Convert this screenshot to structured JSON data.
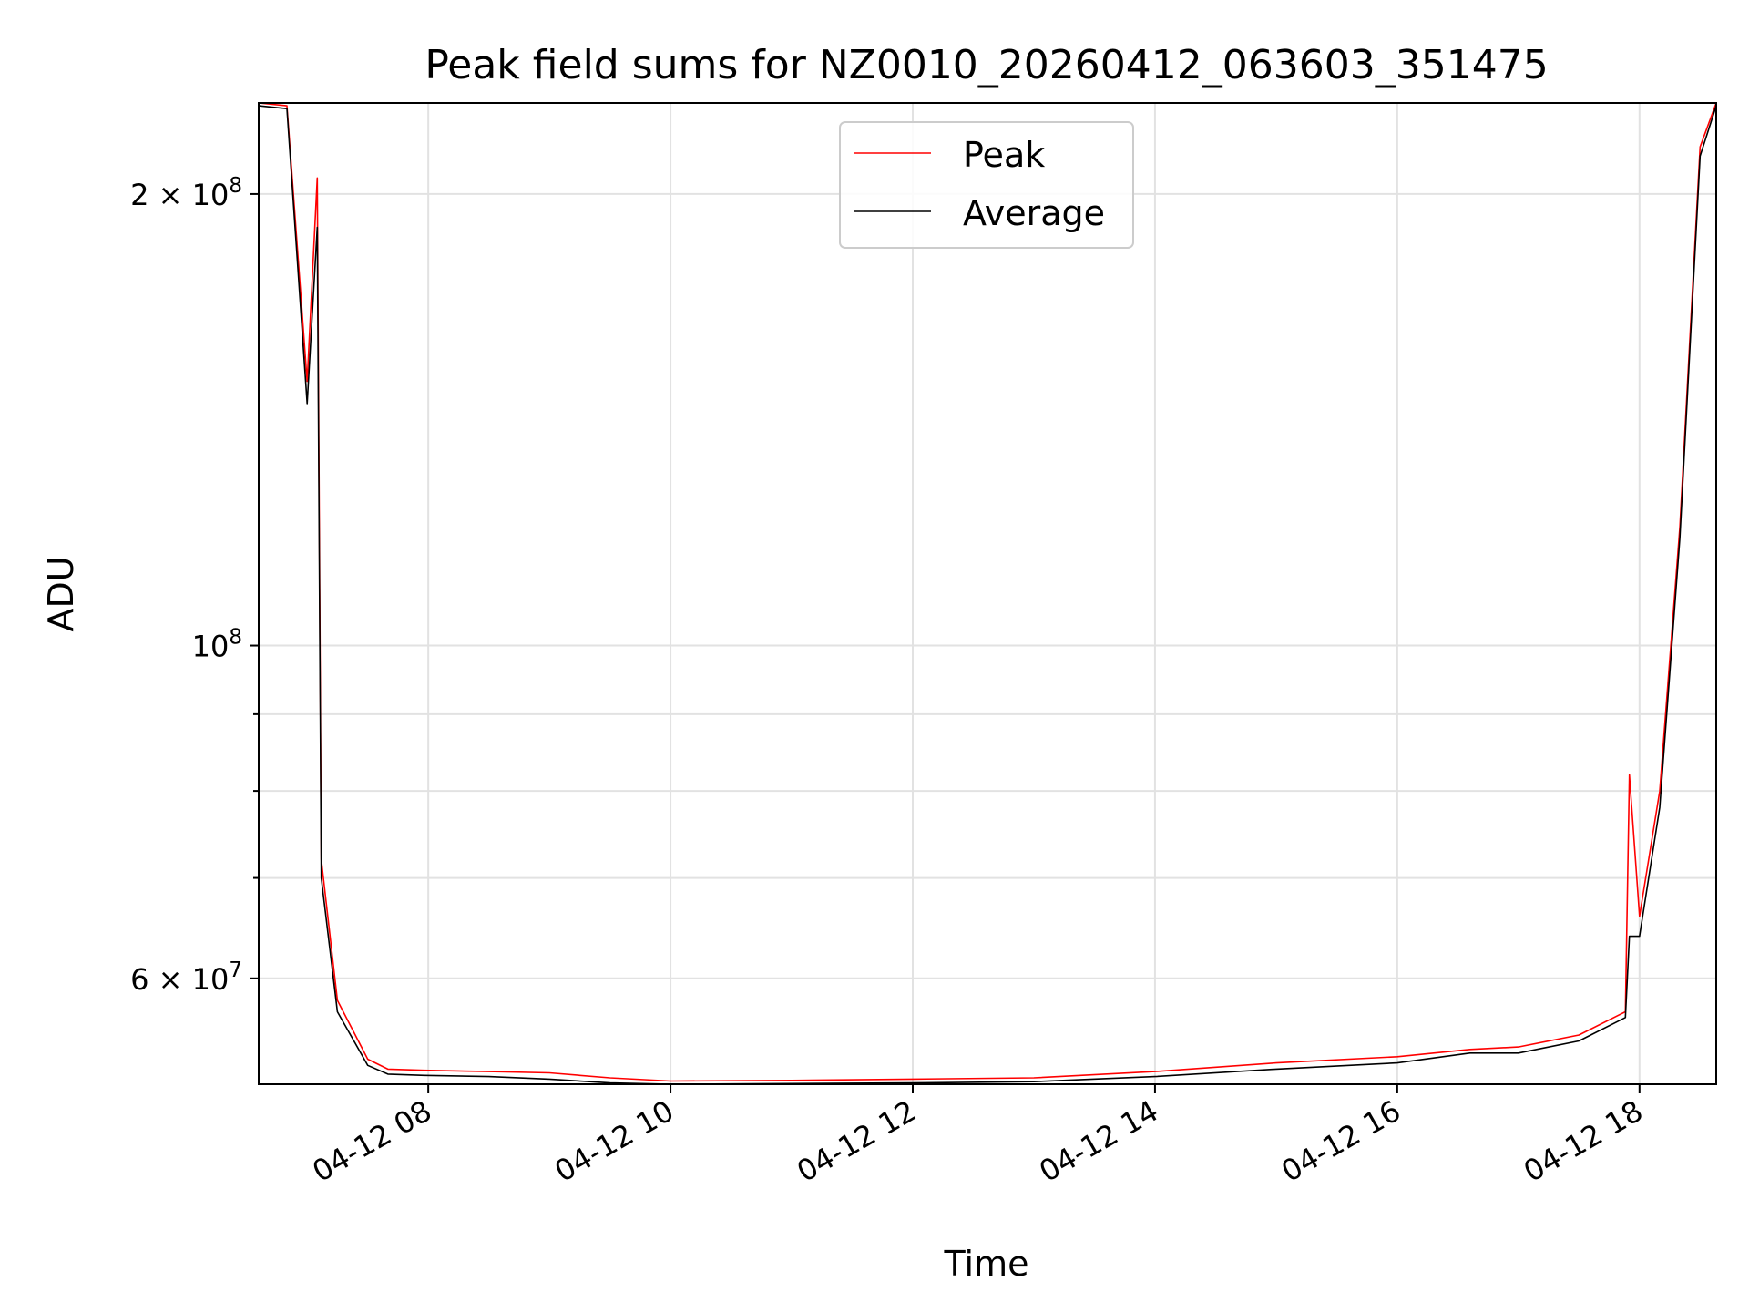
{
  "chart_data": {
    "type": "line",
    "title": "Peak field sums for NZ0010_20260412_063603_351475",
    "xlabel": "Time",
    "ylabel": "ADU",
    "y_scale": "log",
    "grid": true,
    "legend_position": "upper-center",
    "xlim": [
      "2026-04-12 06:36",
      "2026-04-12 18:38"
    ],
    "ylim": [
      51000000,
      230000000
    ],
    "x_ticks": [
      "04-12 08",
      "04-12 10",
      "04-12 12",
      "04-12 14",
      "04-12 16",
      "04-12 18"
    ],
    "y_tick_labels": [
      {
        "value": 200000000,
        "mantissa": "2",
        "base": "10",
        "exp": "8"
      },
      {
        "value": 100000000,
        "mantissa": "",
        "base": "10",
        "exp": "8"
      },
      {
        "value": 60000000,
        "mantissa": "6",
        "base": "10",
        "exp": "7"
      }
    ],
    "y_minor_ticks": [
      70000000,
      80000000,
      90000000
    ],
    "series": [
      {
        "name": "Peak",
        "color": "#ff0000",
        "points": [
          [
            "2026-04-12 06:36",
            230000000
          ],
          [
            "2026-04-12 06:50",
            229000000
          ],
          [
            "2026-04-12 07:00",
            150000000
          ],
          [
            "2026-04-12 07:05",
            205000000
          ],
          [
            "2026-04-12 07:07",
            72000000
          ],
          [
            "2026-04-12 07:15",
            58000000
          ],
          [
            "2026-04-12 07:30",
            53000000
          ],
          [
            "2026-04-12 07:40",
            52200000
          ],
          [
            "2026-04-12 07:58",
            52100000
          ],
          [
            "2026-04-12 08:30",
            52000000
          ],
          [
            "2026-04-12 09:00",
            51900000
          ],
          [
            "2026-04-12 09:30",
            51500000
          ],
          [
            "2026-04-12 10:00",
            51250000
          ],
          [
            "2026-04-12 11:00",
            51300000
          ],
          [
            "2026-04-12 12:00",
            51400000
          ],
          [
            "2026-04-12 13:00",
            51500000
          ],
          [
            "2026-04-12 14:00",
            52000000
          ],
          [
            "2026-04-12 15:00",
            52700000
          ],
          [
            "2026-04-12 16:00",
            53200000
          ],
          [
            "2026-04-12 16:36",
            53800000
          ],
          [
            "2026-04-12 17:00",
            54000000
          ],
          [
            "2026-04-12 17:30",
            55000000
          ],
          [
            "2026-04-12 17:53",
            57000000
          ],
          [
            "2026-04-12 17:55",
            82000000
          ],
          [
            "2026-04-12 18:00",
            66000000
          ],
          [
            "2026-04-12 18:10",
            80000000
          ],
          [
            "2026-04-12 18:20",
            120000000
          ],
          [
            "2026-04-12 18:30",
            215000000
          ],
          [
            "2026-04-12 18:38",
            230000000
          ]
        ]
      },
      {
        "name": "Average",
        "color": "#000000",
        "points": [
          [
            "2026-04-12 06:36",
            229000000
          ],
          [
            "2026-04-12 06:50",
            228000000
          ],
          [
            "2026-04-12 07:00",
            145000000
          ],
          [
            "2026-04-12 07:05",
            190000000
          ],
          [
            "2026-04-12 07:07",
            70000000
          ],
          [
            "2026-04-12 07:15",
            57000000
          ],
          [
            "2026-04-12 07:30",
            52500000
          ],
          [
            "2026-04-12 07:40",
            51800000
          ],
          [
            "2026-04-12 07:58",
            51700000
          ],
          [
            "2026-04-12 08:30",
            51600000
          ],
          [
            "2026-04-12 09:00",
            51400000
          ],
          [
            "2026-04-12 09:30",
            51100000
          ],
          [
            "2026-04-12 10:00",
            51000000
          ],
          [
            "2026-04-12 11:00",
            51050000
          ],
          [
            "2026-04-12 12:00",
            51100000
          ],
          [
            "2026-04-12 13:00",
            51200000
          ],
          [
            "2026-04-12 14:00",
            51600000
          ],
          [
            "2026-04-12 15:00",
            52200000
          ],
          [
            "2026-04-12 16:00",
            52700000
          ],
          [
            "2026-04-12 16:36",
            53500000
          ],
          [
            "2026-04-12 17:00",
            53500000
          ],
          [
            "2026-04-12 17:30",
            54500000
          ],
          [
            "2026-04-12 17:53",
            56500000
          ],
          [
            "2026-04-12 17:55",
            64000000
          ],
          [
            "2026-04-12 18:00",
            64000000
          ],
          [
            "2026-04-12 18:10",
            78000000
          ],
          [
            "2026-04-12 18:20",
            118000000
          ],
          [
            "2026-04-12 18:30",
            212000000
          ],
          [
            "2026-04-12 18:38",
            229000000
          ]
        ]
      }
    ]
  }
}
